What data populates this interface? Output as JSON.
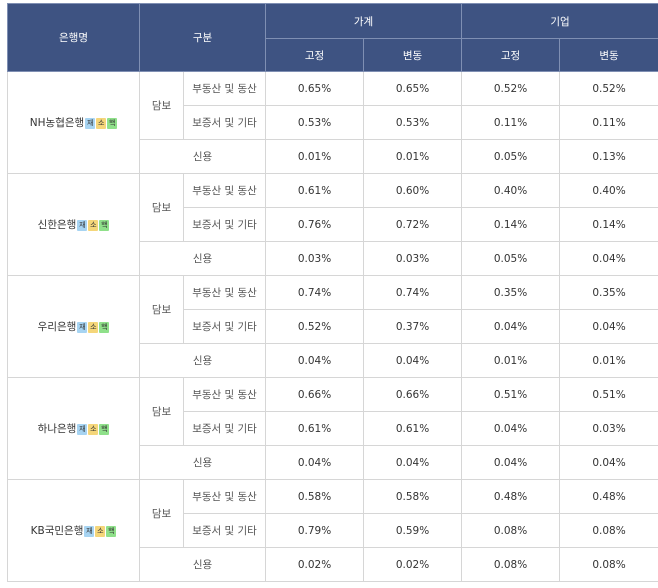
{
  "header": {
    "bank": "은행명",
    "category": "구분",
    "household": "가계",
    "business": "기업",
    "fixed": "고정",
    "variable": "변동"
  },
  "labels": {
    "collateral": "담보",
    "real_estate": "부동산 및 동산",
    "guarantee": "보증서 및 기타",
    "credit": "신용"
  },
  "badge_labels": {
    "jae": "재",
    "so": "소",
    "haek": "핵"
  },
  "colors": {
    "header_bg": "#3e5382",
    "badge_jae": "#a7d4f2",
    "badge_so": "#f5d67a",
    "badge_haek": "#8fe08a"
  },
  "banks": [
    {
      "name": "NH농협은행",
      "real_estate": [
        "0.65%",
        "0.65%",
        "0.52%",
        "0.52%"
      ],
      "guarantee": [
        "0.53%",
        "0.53%",
        "0.11%",
        "0.11%"
      ],
      "credit": [
        "0.01%",
        "0.01%",
        "0.05%",
        "0.13%"
      ]
    },
    {
      "name": "신한은행",
      "real_estate": [
        "0.61%",
        "0.60%",
        "0.40%",
        "0.40%"
      ],
      "guarantee": [
        "0.76%",
        "0.72%",
        "0.14%",
        "0.14%"
      ],
      "credit": [
        "0.03%",
        "0.03%",
        "0.05%",
        "0.04%"
      ]
    },
    {
      "name": "우리은행",
      "real_estate": [
        "0.74%",
        "0.74%",
        "0.35%",
        "0.35%"
      ],
      "guarantee": [
        "0.52%",
        "0.37%",
        "0.04%",
        "0.04%"
      ],
      "credit": [
        "0.04%",
        "0.04%",
        "0.01%",
        "0.01%"
      ]
    },
    {
      "name": "하나은행",
      "real_estate": [
        "0.66%",
        "0.66%",
        "0.51%",
        "0.51%"
      ],
      "guarantee": [
        "0.61%",
        "0.61%",
        "0.04%",
        "0.03%"
      ],
      "credit": [
        "0.04%",
        "0.04%",
        "0.04%",
        "0.04%"
      ]
    },
    {
      "name": "KB국민은행",
      "real_estate": [
        "0.58%",
        "0.58%",
        "0.48%",
        "0.48%"
      ],
      "guarantee": [
        "0.79%",
        "0.59%",
        "0.08%",
        "0.08%"
      ],
      "credit": [
        "0.02%",
        "0.02%",
        "0.08%",
        "0.08%"
      ]
    }
  ]
}
